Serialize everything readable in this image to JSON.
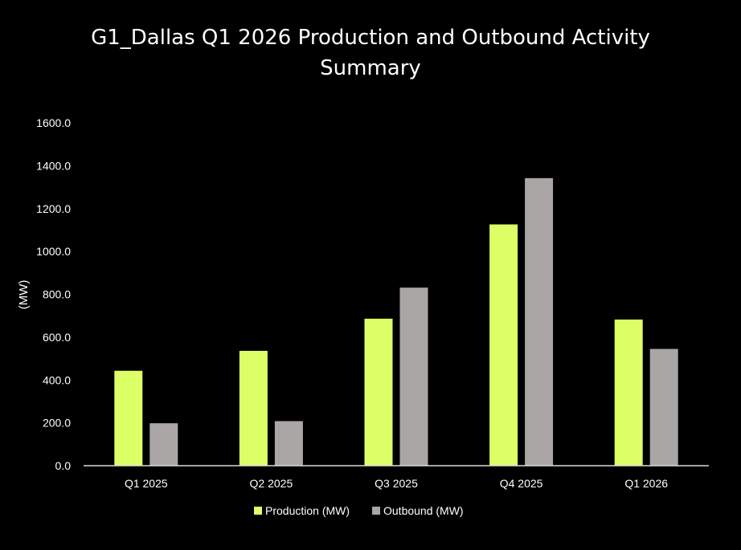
{
  "title_line1": "G1_Dallas Q1 2026 Production and Outbound Activity",
  "title_line2": "Summary",
  "colors": {
    "background": "#000000",
    "production": "#ddff66",
    "outbound": "#aaa6a6",
    "axis": "#d9d9d9",
    "text": "#ffffff"
  },
  "chart_data": {
    "type": "bar",
    "title": "G1_Dallas Q1 2026 Production and Outbound Activity Summary",
    "xlabel": "",
    "ylabel": "(MW)",
    "ylim": [
      0,
      1600
    ],
    "yticks": [
      "0.0",
      "200.0",
      "400.0",
      "600.0",
      "800.0",
      "1000.0",
      "1200.0",
      "1400.0",
      "1600.0"
    ],
    "ytick_values": [
      0,
      200,
      400,
      600,
      800,
      1000,
      1200,
      1400,
      1600
    ],
    "grid": false,
    "legend_position": "bottom",
    "categories": [
      "Q1 2025",
      "Q2 2025",
      "Q3 2025",
      "Q4 2025",
      "Q1 2026"
    ],
    "series": [
      {
        "name": "Production (MW)",
        "color": "#ddff66",
        "values": [
          443,
          536,
          686,
          1126,
          682
        ]
      },
      {
        "name": "Outbound (MW)",
        "color": "#aaa6a6",
        "values": [
          198,
          208,
          831,
          1342,
          545
        ]
      }
    ]
  }
}
